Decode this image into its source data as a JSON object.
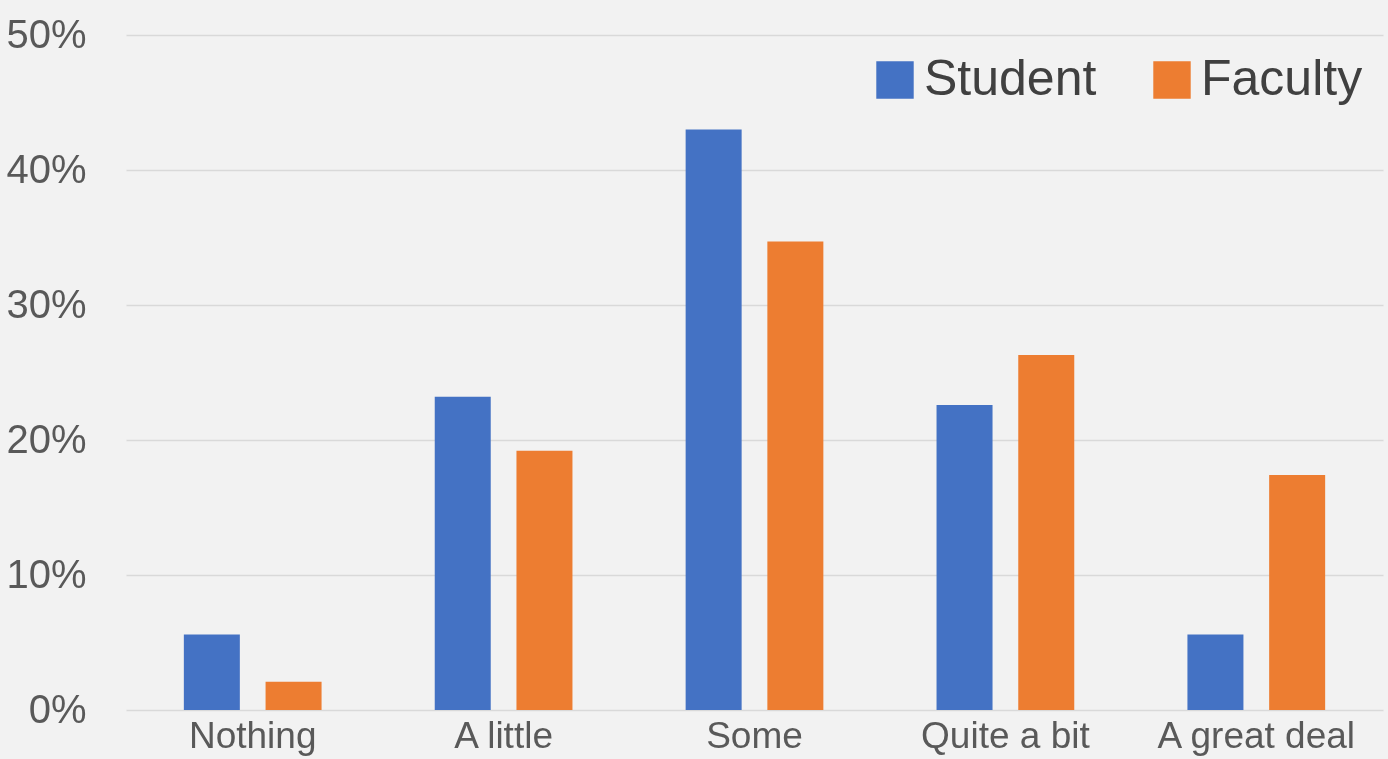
{
  "chart_data": {
    "type": "bar",
    "categories": [
      "Nothing",
      "A little",
      "Some",
      "Quite a bit",
      "A great deal"
    ],
    "series": [
      {
        "name": "Student",
        "color": "#4472c4",
        "values": [
          5.6,
          23.2,
          43.0,
          22.6,
          5.6
        ]
      },
      {
        "name": "Faculty",
        "color": "#ed7d31",
        "values": [
          2.1,
          19.2,
          34.7,
          26.3,
          17.4
        ]
      }
    ],
    "ylim": [
      0,
      50
    ],
    "yticks": [
      {
        "value": 0,
        "label": "0%"
      },
      {
        "value": 10,
        "label": "10%"
      },
      {
        "value": 20,
        "label": "20%"
      },
      {
        "value": 30,
        "label": "30%"
      },
      {
        "value": 40,
        "label": "40%"
      },
      {
        "value": 50,
        "label": "50%"
      }
    ],
    "grid": "y",
    "legend": "top right"
  }
}
